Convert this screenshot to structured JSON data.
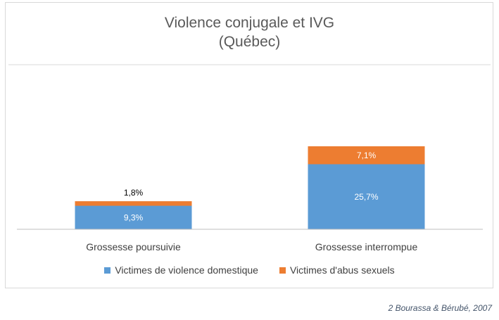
{
  "chart_data": {
    "type": "bar",
    "stacked": true,
    "title": "Violence conjugale et IVG",
    "subtitle": "(Québec)",
    "categories": [
      "Grossesse poursuivie",
      "Grossesse interrompue"
    ],
    "series": [
      {
        "name": "Victimes de violence domestique",
        "color": "#5b9bd5",
        "values": [
          9.3,
          25.7
        ],
        "labels": [
          "9,3%",
          "25,7%"
        ]
      },
      {
        "name": "Victimes d'abus sexuels",
        "color": "#ed7d31",
        "values": [
          1.8,
          7.1
        ],
        "labels": [
          "1,8%",
          "7,1%"
        ]
      }
    ],
    "ylim": [
      0,
      40
    ],
    "grid": false,
    "legend": "bottom"
  },
  "source": "2 Bourassa & Bérubé, 2007"
}
